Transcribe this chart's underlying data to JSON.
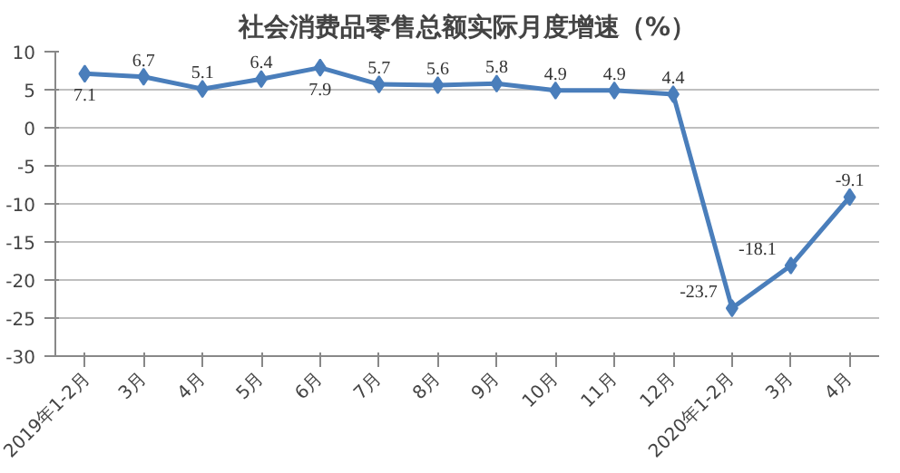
{
  "chart_data": {
    "type": "line",
    "title": "社会消费品零售总额实际月度增速（%）",
    "categories": [
      "2019年1-2月",
      "3月",
      "4月",
      "5月",
      "6月",
      "7月",
      "8月",
      "9月",
      "10月",
      "11月",
      "12月",
      "2020年1-2月",
      "3月",
      "4月"
    ],
    "series": [
      {
        "color": "#4a7ebb",
        "values": [
          7.1,
          6.7,
          5.1,
          6.4,
          7.9,
          5.7,
          5.6,
          5.8,
          4.9,
          4.9,
          4.4,
          -23.7,
          -18.1,
          -9.1
        ]
      }
    ],
    "ylim": [
      -30,
      10
    ],
    "yticks": [
      -30,
      -25,
      -20,
      -15,
      -10,
      -5,
      0,
      5,
      10
    ],
    "grid": "y",
    "marker": "diamond",
    "line_style": "solid",
    "data_labels": true
  }
}
